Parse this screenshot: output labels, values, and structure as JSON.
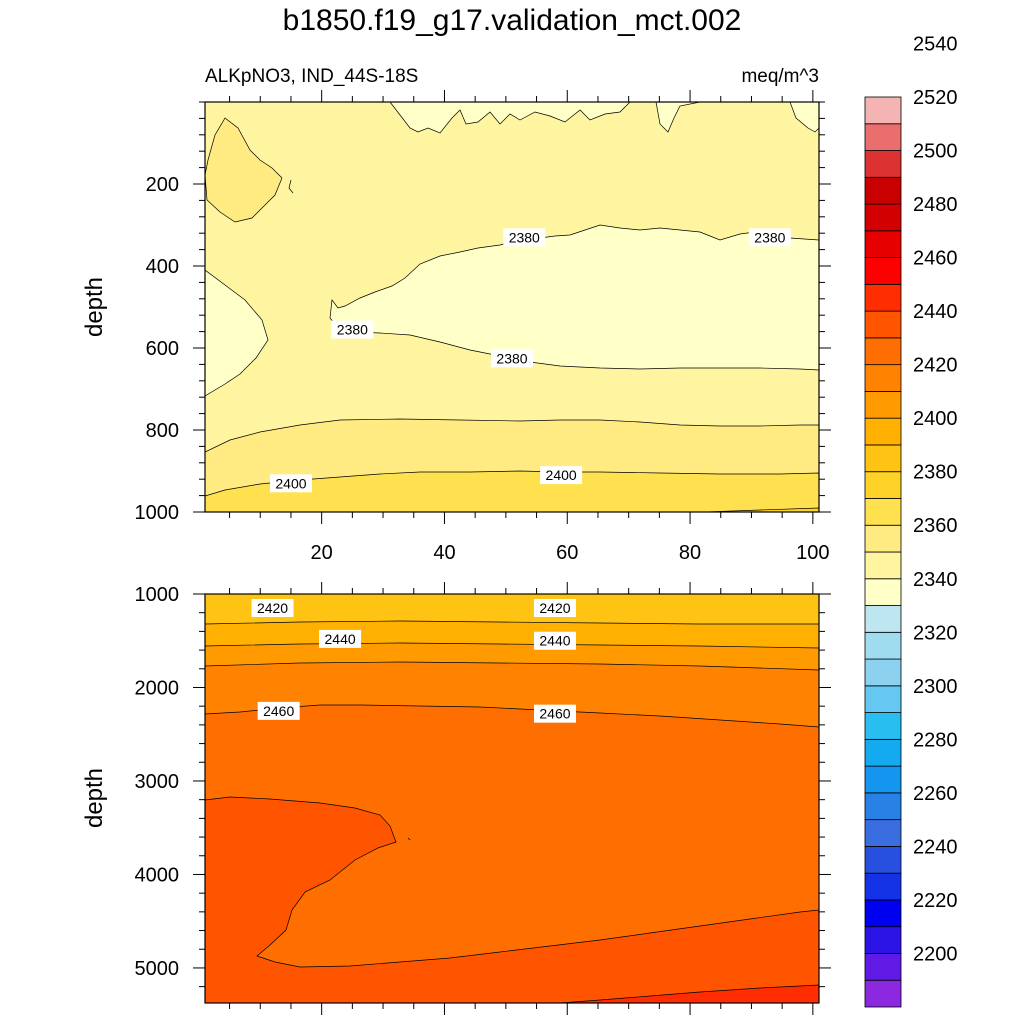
{
  "title": "b1850.f19_g17.validation_mct.002",
  "subtitle_left": "ALKpNO3, IND_44S-18S",
  "subtitle_right": "meq/m^3",
  "colors": {
    "levels": [
      "#8b28e0",
      "#6119e6",
      "#2d14e6",
      "#0000f0",
      "#1432e6",
      "#2850e0",
      "#3a6ee0",
      "#2882e6",
      "#1496f0",
      "#14aaf0",
      "#28bef0",
      "#64c8f0",
      "#8cd2f0",
      "#a0dcf0",
      "#bee6f0",
      "#ffffc8",
      "#fff5a0",
      "#ffeb82",
      "#ffe150",
      "#ffd228",
      "#ffc314",
      "#ffb000",
      "#ff9b00",
      "#ff8200",
      "#ff6e00",
      "#ff5500",
      "#ff2d00",
      "#ff0000",
      "#e60000",
      "#d20000",
      "#c80000",
      "#dc3232",
      "#eb6e6e",
      "#f5b4b4"
    ]
  },
  "chart_data": [
    {
      "type": "contour",
      "panel": "upper",
      "ylabel": "depth",
      "x_ticks": [
        20,
        40,
        60,
        80,
        100
      ],
      "y_ticks": [
        200,
        400,
        600,
        800,
        1000
      ],
      "xlim": [
        1,
        101
      ],
      "ylim": [
        0,
        1000
      ],
      "contour_labels": [
        {
          "text": "2380",
          "x": 53,
          "y": 330
        },
        {
          "text": "2380",
          "x": 93,
          "y": 330
        },
        {
          "text": "2380",
          "x": 25,
          "y": 555
        },
        {
          "text": "2380",
          "x": 51,
          "y": 625
        },
        {
          "text": "2400",
          "x": 15,
          "y": 930
        },
        {
          "text": "2400",
          "x": 59,
          "y": 910
        }
      ]
    },
    {
      "type": "contour",
      "panel": "lower",
      "ylabel": "depth",
      "y_ticks": [
        1000,
        2000,
        3000,
        4000,
        5000
      ],
      "xlim": [
        1,
        101
      ],
      "ylim": [
        1000,
        5375
      ],
      "contour_labels": [
        {
          "text": "2420",
          "x": 12,
          "y": 1150
        },
        {
          "text": "2420",
          "x": 58,
          "y": 1150
        },
        {
          "text": "2440",
          "x": 23,
          "y": 1480
        },
        {
          "text": "2440",
          "x": 58,
          "y": 1500
        },
        {
          "text": "2460",
          "x": 13,
          "y": 2250
        },
        {
          "text": "2460",
          "x": 58,
          "y": 2280
        }
      ]
    }
  ],
  "colorbar": {
    "labels": [
      "2200",
      "2220",
      "2240",
      "2260",
      "2280",
      "2300",
      "2320",
      "2340",
      "2360",
      "2380",
      "2400",
      "2420",
      "2440",
      "2460",
      "2480",
      "2500",
      "2520",
      "2540"
    ]
  }
}
